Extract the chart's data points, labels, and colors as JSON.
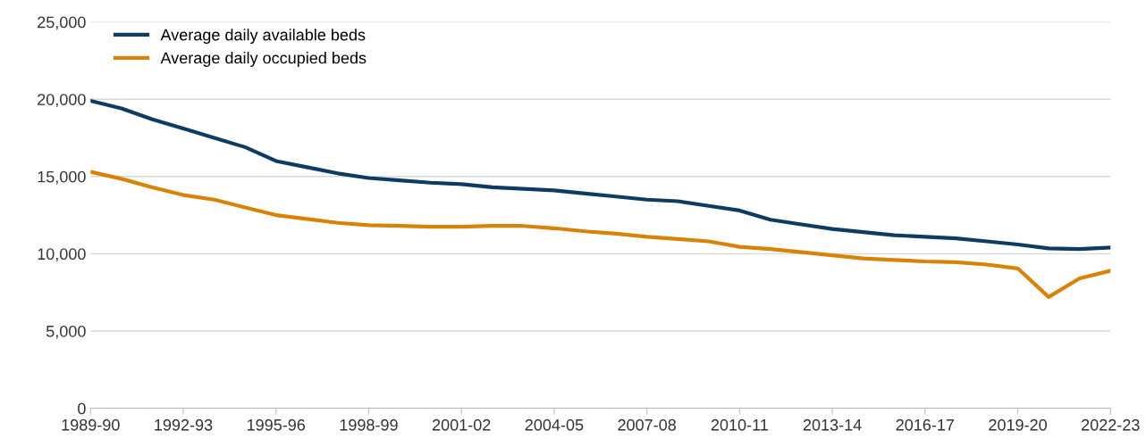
{
  "chart_data": {
    "type": "line",
    "categories": [
      "1989-90",
      null,
      null,
      "1992-93",
      null,
      null,
      "1995-96",
      null,
      null,
      "1998-99",
      null,
      null,
      "2001-02",
      null,
      null,
      "2004-05",
      null,
      null,
      "2007-08",
      null,
      null,
      "2010-11",
      null,
      null,
      "2013-14",
      null,
      null,
      "2016-17",
      null,
      null,
      "2019-20",
      null,
      null,
      "2022-23"
    ],
    "series": [
      {
        "name": "Average daily available beds",
        "color": "#0e3b61",
        "values": [
          19900,
          19400,
          18700,
          18100,
          17500,
          16900,
          16000,
          15600,
          15200,
          14900,
          14750,
          14600,
          14500,
          14300,
          14200,
          14100,
          13900,
          13700,
          13500,
          13400,
          13100,
          12800,
          12200,
          11900,
          11600,
          11400,
          11200,
          11100,
          11000,
          10800,
          10600,
          10350,
          10300,
          10400
        ]
      },
      {
        "name": "Average daily occupied beds",
        "color": "#d9820a",
        "values": [
          15300,
          14850,
          14300,
          13800,
          13500,
          13000,
          12500,
          12250,
          12000,
          11850,
          11800,
          11750,
          11750,
          11800,
          11800,
          11650,
          11450,
          11300,
          11100,
          10950,
          10800,
          10450,
          10300,
          10100,
          9900,
          9700,
          9600,
          9500,
          9450,
          9300,
          9050,
          7200,
          8400,
          8900
        ]
      }
    ],
    "ylim": [
      0,
      25000
    ],
    "yticks": [
      {
        "value": 0,
        "label": "0"
      },
      {
        "value": 5000,
        "label": "5,000"
      },
      {
        "value": 10000,
        "label": "10,000"
      },
      {
        "value": 15000,
        "label": "15,000"
      },
      {
        "value": 20000,
        "label": "20,000"
      },
      {
        "value": 25000,
        "label": "25,000"
      }
    ],
    "grid": "y",
    "legend": "top left",
    "marker": "none",
    "line_style": "solid"
  }
}
